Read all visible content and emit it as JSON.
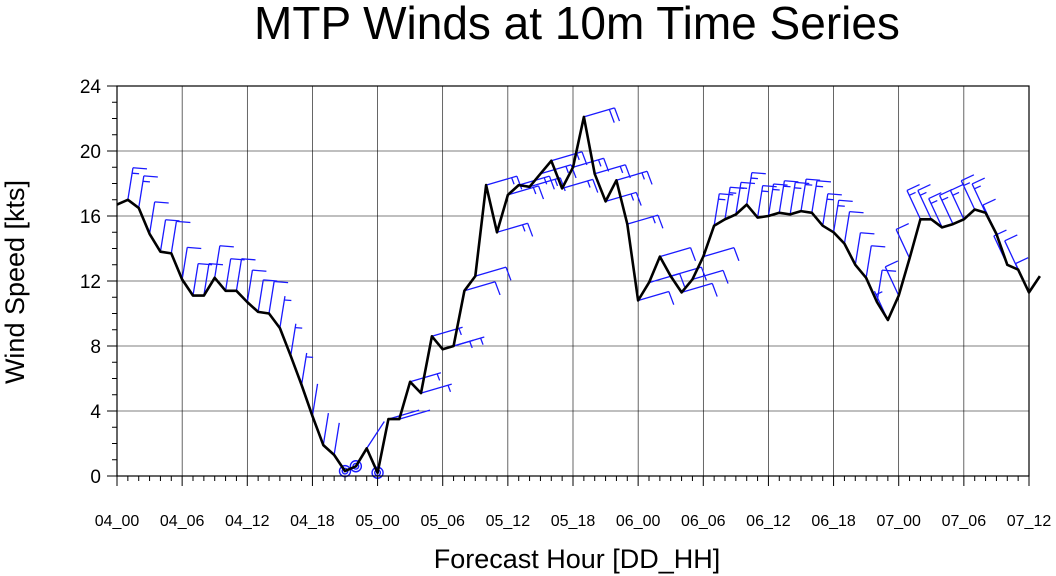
{
  "chart_data": {
    "type": "line",
    "title": "MTP Winds at 10m Time Series",
    "xlabel": "Forecast Hour [DD_HH]",
    "ylabel": "Wind Speed [kts]",
    "xlim": [
      0,
      84
    ],
    "ylim": [
      0,
      24
    ],
    "yticks": [
      0,
      4,
      8,
      12,
      16,
      20,
      24
    ],
    "xticks": [
      0,
      6,
      12,
      18,
      24,
      30,
      36,
      42,
      48,
      54,
      60,
      66,
      72,
      78,
      84
    ],
    "xtick_labels": [
      "04_00",
      "04_06",
      "04_12",
      "04_18",
      "05_00",
      "05_06",
      "05_12",
      "05_18",
      "06_00",
      "06_06",
      "06_12",
      "06_18",
      "07_00",
      "07_06",
      "07_12"
    ],
    "grid": true,
    "colors": {
      "line": "#000000",
      "barbs": "#1a1aff"
    },
    "series": [
      {
        "values": [
          {
            "x": 0,
            "y": 16.7
          },
          {
            "x": 1,
            "y": 17.0
          },
          {
            "x": 2,
            "y": 16.5
          },
          {
            "x": 3,
            "y": 14.9
          },
          {
            "x": 4,
            "y": 13.8
          },
          {
            "x": 5,
            "y": 13.7
          },
          {
            "x": 6,
            "y": 12.1
          },
          {
            "x": 7,
            "y": 11.1
          },
          {
            "x": 8,
            "y": 11.1
          },
          {
            "x": 9,
            "y": 12.2
          },
          {
            "x": 10,
            "y": 11.4
          },
          {
            "x": 11,
            "y": 11.4
          },
          {
            "x": 12,
            "y": 10.7
          },
          {
            "x": 13,
            "y": 10.1
          },
          {
            "x": 14,
            "y": 10.0
          },
          {
            "x": 15,
            "y": 9.1
          },
          {
            "x": 16,
            "y": 7.4
          },
          {
            "x": 17,
            "y": 5.6
          },
          {
            "x": 18,
            "y": 3.7
          },
          {
            "x": 19,
            "y": 1.9
          },
          {
            "x": 20,
            "y": 1.3
          },
          {
            "x": 21,
            "y": 0.3
          },
          {
            "x": 22,
            "y": 0.6
          },
          {
            "x": 23,
            "y": 1.7
          },
          {
            "x": 24,
            "y": 0.2
          },
          {
            "x": 25,
            "y": 3.5
          },
          {
            "x": 26,
            "y": 3.5
          },
          {
            "x": 27,
            "y": 5.8
          },
          {
            "x": 28,
            "y": 5.1
          },
          {
            "x": 29,
            "y": 8.6
          },
          {
            "x": 30,
            "y": 7.8
          },
          {
            "x": 31,
            "y": 8.0
          },
          {
            "x": 32,
            "y": 11.4
          },
          {
            "x": 33,
            "y": 12.3
          },
          {
            "x": 34,
            "y": 17.9
          },
          {
            "x": 35,
            "y": 15.0
          },
          {
            "x": 36,
            "y": 17.3
          },
          {
            "x": 37,
            "y": 17.9
          },
          {
            "x": 38,
            "y": 17.8
          },
          {
            "x": 39,
            "y": 18.6
          },
          {
            "x": 40,
            "y": 19.4
          },
          {
            "x": 41,
            "y": 17.7
          },
          {
            "x": 42,
            "y": 19.0
          },
          {
            "x": 43,
            "y": 22.1
          },
          {
            "x": 44,
            "y": 18.6
          },
          {
            "x": 45,
            "y": 16.9
          },
          {
            "x": 46,
            "y": 18.2
          },
          {
            "x": 47,
            "y": 15.5
          },
          {
            "x": 48,
            "y": 10.8
          },
          {
            "x": 49,
            "y": 11.9
          },
          {
            "x": 50,
            "y": 13.5
          },
          {
            "x": 51,
            "y": 12.3
          },
          {
            "x": 52,
            "y": 11.3
          },
          {
            "x": 53,
            "y": 12.1
          },
          {
            "x": 54,
            "y": 13.5
          },
          {
            "x": 55,
            "y": 15.4
          },
          {
            "x": 56,
            "y": 15.8
          },
          {
            "x": 57,
            "y": 16.1
          },
          {
            "x": 58,
            "y": 16.7
          },
          {
            "x": 59,
            "y": 15.9
          },
          {
            "x": 60,
            "y": 16.0
          },
          {
            "x": 61,
            "y": 16.2
          },
          {
            "x": 62,
            "y": 16.1
          },
          {
            "x": 63,
            "y": 16.3
          },
          {
            "x": 64,
            "y": 16.2
          },
          {
            "x": 65,
            "y": 15.4
          },
          {
            "x": 66,
            "y": 15.0
          },
          {
            "x": 67,
            "y": 14.3
          },
          {
            "x": 68,
            "y": 13.0
          },
          {
            "x": 69,
            "y": 12.2
          },
          {
            "x": 70,
            "y": 10.7
          },
          {
            "x": 71,
            "y": 9.6
          },
          {
            "x": 72,
            "y": 11.1
          },
          {
            "x": 73,
            "y": 13.4
          },
          {
            "x": 74,
            "y": 15.8
          },
          {
            "x": 75,
            "y": 15.8
          },
          {
            "x": 76,
            "y": 15.3
          },
          {
            "x": 77,
            "y": 15.5
          },
          {
            "x": 78,
            "y": 15.8
          },
          {
            "x": 79,
            "y": 16.4
          },
          {
            "x": 80,
            "y": 16.2
          },
          {
            "x": 81,
            "y": 14.9
          },
          {
            "x": 82,
            "y": 13.0
          },
          {
            "x": 83,
            "y": 12.7
          },
          {
            "x": 84,
            "y": 11.3
          },
          {
            "x": 85,
            "y": 12.3
          }
        ]
      }
    ],
    "wind_barbs": [
      {
        "x": 1,
        "y": 17.0,
        "dir": "N"
      },
      {
        "x": 2,
        "y": 16.5,
        "dir": "N"
      },
      {
        "x": 3,
        "y": 14.9,
        "dir": "N"
      },
      {
        "x": 4,
        "y": 13.8,
        "dir": "N"
      },
      {
        "x": 5,
        "y": 13.7,
        "dir": "N"
      },
      {
        "x": 6,
        "y": 12.1,
        "dir": "N"
      },
      {
        "x": 7,
        "y": 11.1,
        "dir": "N"
      },
      {
        "x": 8,
        "y": 11.1,
        "dir": "N"
      },
      {
        "x": 9,
        "y": 12.2,
        "dir": "N"
      },
      {
        "x": 10,
        "y": 11.4,
        "dir": "N"
      },
      {
        "x": 11,
        "y": 11.4,
        "dir": "N"
      },
      {
        "x": 12,
        "y": 10.7,
        "dir": "N"
      },
      {
        "x": 13,
        "y": 10.1,
        "dir": "N"
      },
      {
        "x": 14,
        "y": 10.0,
        "dir": "N"
      },
      {
        "x": 15,
        "y": 9.1,
        "dir": "N"
      },
      {
        "x": 16,
        "y": 7.4,
        "dir": "N"
      },
      {
        "x": 17,
        "y": 5.6,
        "dir": "N"
      },
      {
        "x": 18,
        "y": 3.7,
        "dir": "N"
      },
      {
        "x": 19,
        "y": 1.9,
        "dir": "N"
      },
      {
        "x": 20,
        "y": 1.3,
        "dir": "N"
      },
      {
        "x": 21,
        "y": 0.3,
        "calm": true
      },
      {
        "x": 22,
        "y": 0.6,
        "calm": true
      },
      {
        "x": 23,
        "y": 1.7,
        "dir": "NE"
      },
      {
        "x": 24,
        "y": 0.2,
        "calm": true
      },
      {
        "x": 25,
        "y": 3.5,
        "dir": "E"
      },
      {
        "x": 26,
        "y": 3.5,
        "dir": "E"
      },
      {
        "x": 27,
        "y": 5.8,
        "dir": "E"
      },
      {
        "x": 28,
        "y": 5.1,
        "dir": "E"
      },
      {
        "x": 29,
        "y": 8.6,
        "dir": "E"
      },
      {
        "x": 30,
        "y": 7.8,
        "dir": "E"
      },
      {
        "x": 31,
        "y": 8.0,
        "dir": "E"
      },
      {
        "x": 32,
        "y": 11.4,
        "dir": "E"
      },
      {
        "x": 33,
        "y": 12.3,
        "dir": "E"
      },
      {
        "x": 34,
        "y": 17.9,
        "dir": "E"
      },
      {
        "x": 35,
        "y": 15.0,
        "dir": "E"
      },
      {
        "x": 36,
        "y": 17.3,
        "dir": "E"
      },
      {
        "x": 37,
        "y": 17.9,
        "dir": "E"
      },
      {
        "x": 38,
        "y": 17.8,
        "dir": "E"
      },
      {
        "x": 39,
        "y": 18.6,
        "dir": "E"
      },
      {
        "x": 40,
        "y": 19.4,
        "dir": "E"
      },
      {
        "x": 41,
        "y": 17.7,
        "dir": "E"
      },
      {
        "x": 42,
        "y": 19.0,
        "dir": "E"
      },
      {
        "x": 43,
        "y": 22.1,
        "dir": "E"
      },
      {
        "x": 44,
        "y": 18.6,
        "dir": "E"
      },
      {
        "x": 45,
        "y": 16.9,
        "dir": "E"
      },
      {
        "x": 46,
        "y": 18.2,
        "dir": "E"
      },
      {
        "x": 47,
        "y": 15.5,
        "dir": "E"
      },
      {
        "x": 48,
        "y": 10.8,
        "dir": "E"
      },
      {
        "x": 49,
        "y": 11.9,
        "dir": "E"
      },
      {
        "x": 50,
        "y": 13.5,
        "dir": "E"
      },
      {
        "x": 51,
        "y": 12.3,
        "dir": "E"
      },
      {
        "x": 52,
        "y": 11.3,
        "dir": "E"
      },
      {
        "x": 53,
        "y": 12.1,
        "dir": "E"
      },
      {
        "x": 54,
        "y": 13.5,
        "dir": "E"
      },
      {
        "x": 55,
        "y": 15.4,
        "dir": "N"
      },
      {
        "x": 56,
        "y": 15.8,
        "dir": "N"
      },
      {
        "x": 57,
        "y": 16.1,
        "dir": "N"
      },
      {
        "x": 58,
        "y": 16.7,
        "dir": "N"
      },
      {
        "x": 59,
        "y": 15.9,
        "dir": "N"
      },
      {
        "x": 60,
        "y": 16.0,
        "dir": "N"
      },
      {
        "x": 61,
        "y": 16.2,
        "dir": "N"
      },
      {
        "x": 62,
        "y": 16.1,
        "dir": "N"
      },
      {
        "x": 63,
        "y": 16.3,
        "dir": "N"
      },
      {
        "x": 64,
        "y": 16.2,
        "dir": "N"
      },
      {
        "x": 65,
        "y": 15.4,
        "dir": "N"
      },
      {
        "x": 66,
        "y": 15.0,
        "dir": "N"
      },
      {
        "x": 67,
        "y": 14.3,
        "dir": "N"
      },
      {
        "x": 68,
        "y": 13.0,
        "dir": "N"
      },
      {
        "x": 69,
        "y": 12.2,
        "dir": "N"
      },
      {
        "x": 70,
        "y": 10.7,
        "dir": "N"
      },
      {
        "x": 71,
        "y": 9.6,
        "dir": "NW"
      },
      {
        "x": 72,
        "y": 11.1,
        "dir": "NW"
      },
      {
        "x": 73,
        "y": 13.4,
        "dir": "NW"
      },
      {
        "x": 74,
        "y": 15.8,
        "dir": "NW"
      },
      {
        "x": 75,
        "y": 15.8,
        "dir": "NW"
      },
      {
        "x": 76,
        "y": 15.3,
        "dir": "NW"
      },
      {
        "x": 77,
        "y": 15.5,
        "dir": "NW"
      },
      {
        "x": 78,
        "y": 15.8,
        "dir": "NW"
      },
      {
        "x": 79,
        "y": 16.4,
        "dir": "NW"
      },
      {
        "x": 80,
        "y": 16.2,
        "dir": "NW"
      },
      {
        "x": 81,
        "y": 14.9,
        "dir": "NW"
      },
      {
        "x": 82,
        "y": 13.0,
        "dir": "NW"
      },
      {
        "x": 83,
        "y": 12.7,
        "dir": "NW"
      },
      {
        "x": 84,
        "y": 11.3,
        "dir": "NW"
      }
    ]
  }
}
